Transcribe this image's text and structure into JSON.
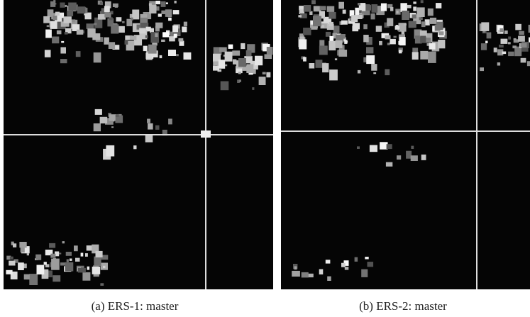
{
  "figure": {
    "panels": [
      {
        "caption": "(a) ERS-1: master"
      },
      {
        "caption": "(b) ERS-2: master"
      }
    ]
  }
}
